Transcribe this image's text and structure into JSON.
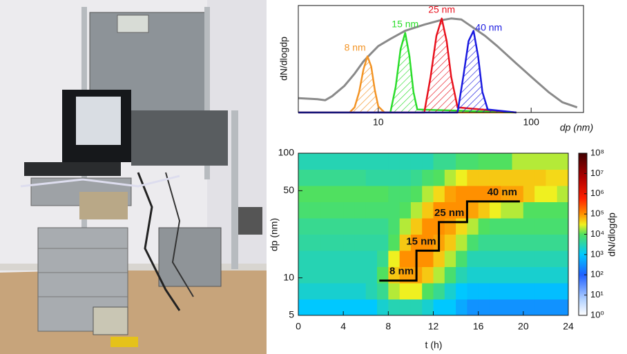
{
  "chart_data": [
    {
      "type": "line",
      "xlabel": "dp (nm)",
      "ylabel": "dN/dlogdp",
      "xscale": "log",
      "xlim": [
        3,
        220
      ],
      "xticks": [
        10,
        100
      ],
      "ylim": [
        0,
        100
      ],
      "series": [
        {
          "color": "#8a8a8a",
          "x": [
            3,
            4,
            4.5,
            5,
            6,
            7,
            8,
            9,
            10,
            12,
            15,
            20,
            25,
            30,
            35,
            40,
            50,
            60,
            80,
            100,
            130,
            160,
            200
          ],
          "values": [
            14,
            13,
            12,
            16,
            26,
            38,
            50,
            58,
            65,
            72,
            80,
            86,
            90,
            92,
            91,
            85,
            75,
            65,
            48,
            35,
            20,
            10,
            5
          ]
        },
        {
          "name": "8 nm",
          "color": "#f39425",
          "x": [
            3,
            6.5,
            7,
            7.5,
            8,
            8.5,
            9,
            9.5,
            10,
            11,
            80
          ],
          "values": [
            0,
            0,
            5,
            20,
            42,
            55,
            45,
            22,
            6,
            0,
            0
          ]
        },
        {
          "name": "15 nm",
          "color": "#2add2a",
          "x": [
            3,
            12,
            13,
            14,
            15,
            16,
            17,
            18,
            80
          ],
          "values": [
            0,
            0,
            25,
            62,
            78,
            55,
            20,
            3,
            0
          ]
        },
        {
          "name": "25 nm",
          "color": "#e8101c",
          "x": [
            3,
            20,
            22,
            24,
            26,
            28,
            30,
            33,
            80
          ],
          "values": [
            0,
            0,
            35,
            75,
            92,
            70,
            35,
            5,
            0
          ]
        },
        {
          "name": "40 nm",
          "color": "#1a1ae0",
          "x": [
            3,
            33,
            36,
            39,
            42,
            45,
            48,
            52,
            80
          ],
          "values": [
            0,
            0,
            35,
            70,
            80,
            55,
            20,
            3,
            0
          ]
        }
      ]
    },
    {
      "type": "heatmap",
      "xlabel": "t (h)",
      "ylabel": "dp (nm)",
      "zlabel": "dN/dlogdp",
      "yscale": "log",
      "zscale": "log",
      "xlim": [
        0,
        24
      ],
      "xticks": [
        0,
        4,
        8,
        12,
        16,
        20,
        24
      ],
      "ylim": [
        5,
        100
      ],
      "yticks": [
        5,
        10,
        50,
        100
      ],
      "zlim": [
        1,
        100000000.0
      ],
      "zticks": [
        {
          "value": 1,
          "label": "10⁰"
        },
        {
          "value": 10,
          "label": "10¹"
        },
        {
          "value": 100,
          "label": "10²"
        },
        {
          "value": 1000,
          "label": "10³"
        },
        {
          "value": 10000,
          "label": "10⁴"
        },
        {
          "value": 100000,
          "label": "10⁵"
        },
        {
          "value": 1000000,
          "label": "10⁶"
        },
        {
          "value": 10000000,
          "label": "10⁷"
        },
        {
          "value": 100000000,
          "label": "10⁸"
        }
      ],
      "z": [
        [
          1000.0,
          1000.0,
          1000.0,
          1000.0,
          1000.0,
          1000.0,
          1000.0,
          2000.0,
          3000.0,
          3000.0,
          3000.0,
          2000.0,
          1000.0,
          1000.0,
          500.0,
          300.0,
          300.0,
          300.0,
          300.0,
          300.0,
          300.0,
          300.0,
          300.0,
          300.0
        ],
        [
          2000.0,
          2000.0,
          2000.0,
          2000.0,
          2000.0,
          2000.0,
          3000.0,
          5000.0,
          20000.0,
          30000.0,
          30000.0,
          10000.0,
          5000.0,
          2000.0,
          1000.0,
          800.0,
          800.0,
          800.0,
          800.0,
          800.0,
          800.0,
          800.0,
          800.0,
          800.0
        ],
        [
          3000.0,
          3000.0,
          3000.0,
          3000.0,
          3000.0,
          3000.0,
          3000.0,
          10000.0,
          50000.0,
          80000.0,
          80000.0,
          50000.0,
          20000.0,
          8000.0,
          3000.0,
          2000.0,
          2000.0,
          2000.0,
          2000.0,
          2000.0,
          2000.0,
          2000.0,
          2000.0,
          2000.0
        ],
        [
          3000.0,
          3000.0,
          3000.0,
          3000.0,
          3000.0,
          3000.0,
          3000.0,
          5000.0,
          30000.0,
          100000.0,
          100000.0,
          100000.0,
          50000.0,
          20000.0,
          8000.0,
          3000.0,
          3000.0,
          3000.0,
          3000.0,
          3000.0,
          3000.0,
          3000.0,
          3000.0,
          3000.0
        ],
        [
          4000.0,
          4000.0,
          4000.0,
          4000.0,
          4000.0,
          4000.0,
          4000.0,
          4000.0,
          10000.0,
          50000.0,
          100000.0,
          100000.0,
          80000.0,
          50000.0,
          20000.0,
          8000.0,
          5000.0,
          5000.0,
          5000.0,
          5000.0,
          5000.0,
          5000.0,
          5000.0,
          5000.0
        ],
        [
          5000.0,
          5000.0,
          5000.0,
          5000.0,
          5000.0,
          5000.0,
          5000.0,
          5000.0,
          8000.0,
          20000.0,
          50000.0,
          100000.0,
          100000.0,
          80000.0,
          40000.0,
          20000.0,
          10000.0,
          8000.0,
          8000.0,
          8000.0,
          8000.0,
          8000.0,
          8000.0,
          8000.0
        ],
        [
          8000.0,
          8000.0,
          8000.0,
          8000.0,
          8000.0,
          8000.0,
          8000.0,
          8000.0,
          8000.0,
          10000.0,
          20000.0,
          50000.0,
          100000.0,
          100000.0,
          100000.0,
          80000.0,
          50000.0,
          30000.0,
          20000.0,
          20000.0,
          10000.0,
          10000.0,
          10000.0,
          10000.0
        ],
        [
          10000.0,
          10000.0,
          10000.0,
          10000.0,
          10000.0,
          10000.0,
          10000.0,
          10000.0,
          8000.0,
          8000.0,
          10000.0,
          20000.0,
          40000.0,
          80000.0,
          100000.0,
          100000.0,
          100000.0,
          100000.0,
          80000.0,
          80000.0,
          50000.0,
          30000.0,
          30000.0,
          20000.0
        ],
        [
          5000.0,
          5000.0,
          5000.0,
          5000.0,
          5000.0,
          5000.0,
          4000.0,
          4000.0,
          4000.0,
          4000.0,
          5000.0,
          8000.0,
          10000.0,
          20000.0,
          30000.0,
          50000.0,
          50000.0,
          50000.0,
          50000.0,
          50000.0,
          50000.0,
          50000.0,
          40000.0,
          40000.0
        ],
        [
          3000.0,
          3000.0,
          3000.0,
          3000.0,
          3000.0,
          3000.0,
          3000.0,
          3000.0,
          3000.0,
          3000.0,
          3000.0,
          3000.0,
          5000.0,
          5000.0,
          8000.0,
          8000.0,
          10000.0,
          10000.0,
          10000.0,
          20000.0,
          20000.0,
          20000.0,
          20000.0,
          20000.0
        ]
      ],
      "series": [
        {
          "color": "#000000",
          "x": [
            7.2,
            10.5,
            10.5,
            12.5,
            12.5,
            15,
            15,
            19.7
          ],
          "values": [
            9.5,
            9.5,
            16.5,
            16.5,
            28,
            28,
            41,
            41
          ]
        }
      ],
      "annotations": [
        "8 nm",
        "15 nm",
        "25 nm",
        "40 nm"
      ]
    }
  ]
}
